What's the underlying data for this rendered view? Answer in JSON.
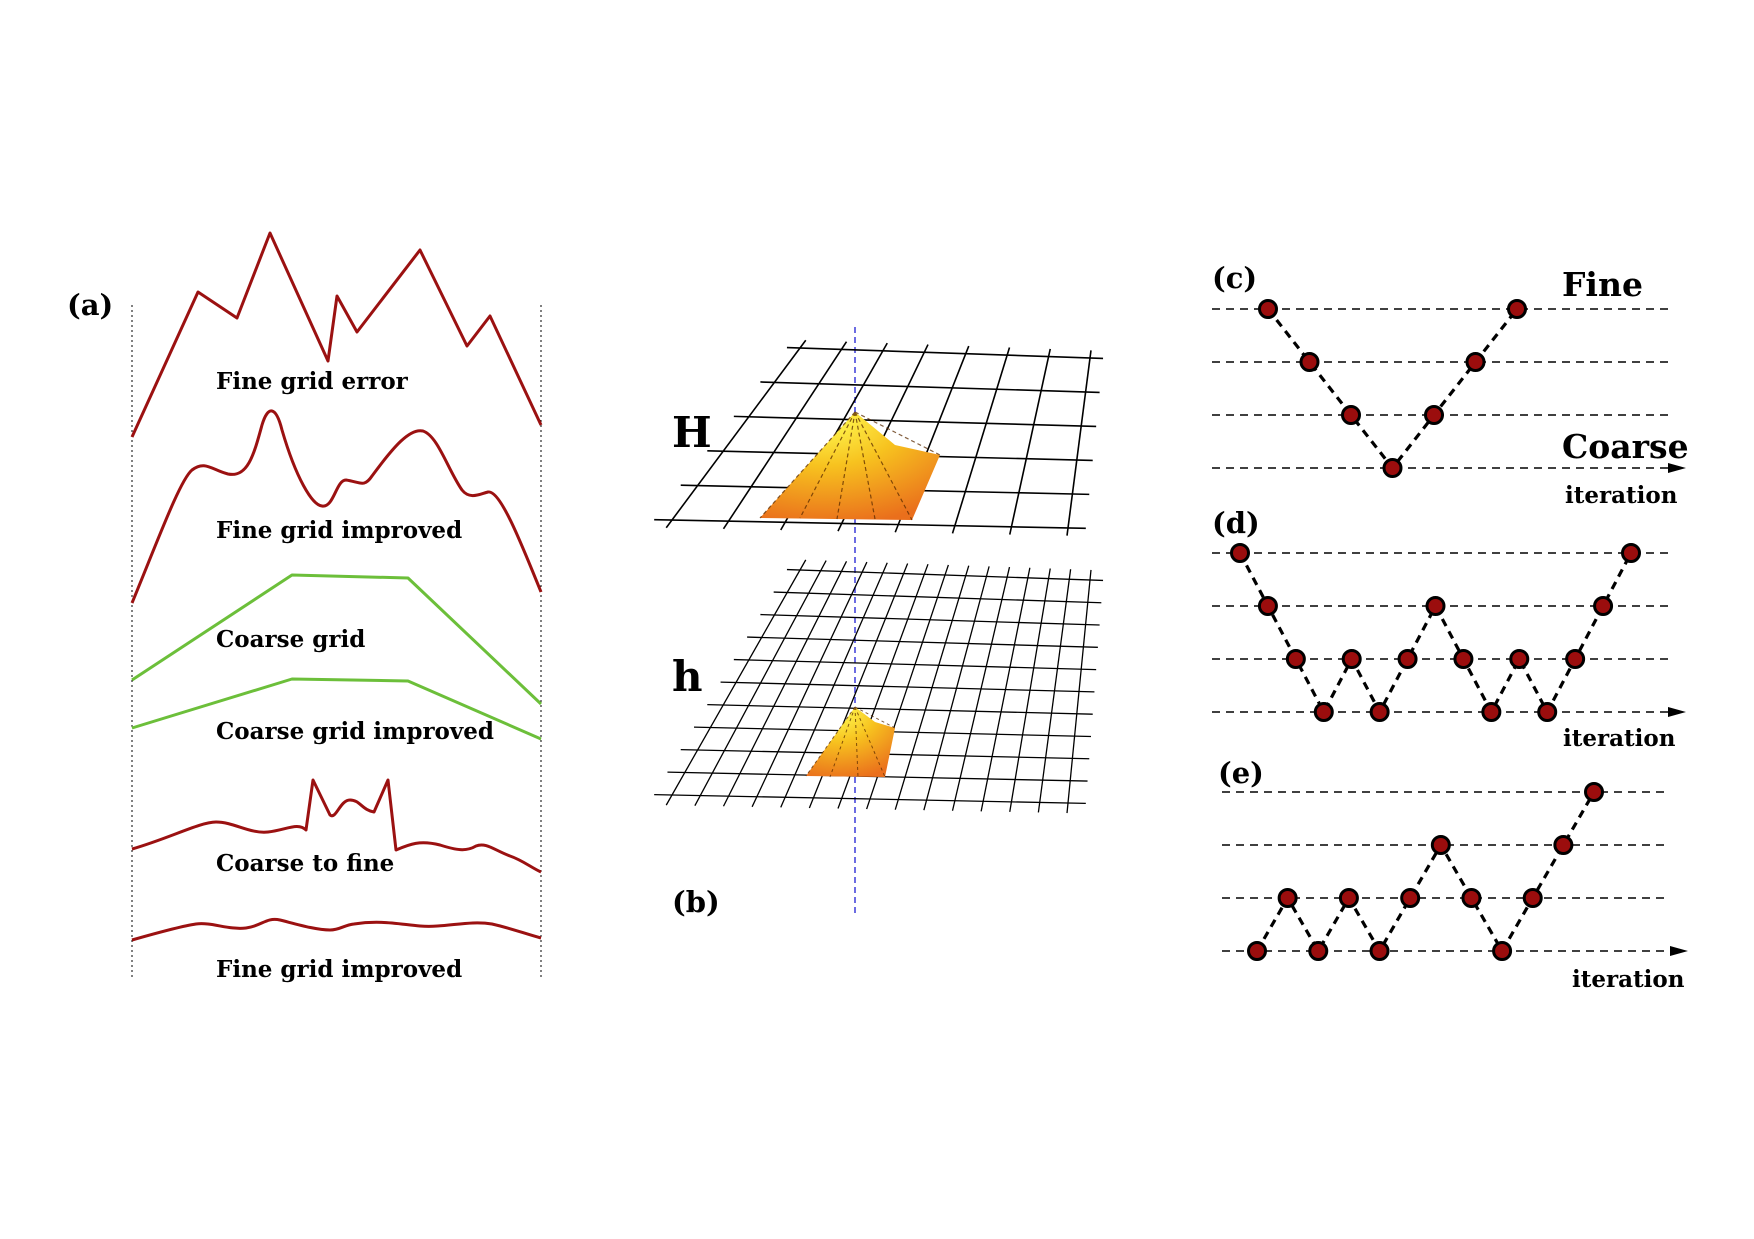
{
  "panel_a": {
    "label": "(a)",
    "curves": [
      {
        "name": "Fine grid error",
        "color": "#9b1111"
      },
      {
        "name": "Fine grid improved",
        "color": "#9b1111"
      },
      {
        "name": "Coarse grid",
        "color": "#6cbf3a"
      },
      {
        "name": "Coarse grid improved",
        "color": "#6cbf3a"
      },
      {
        "name": "Coarse to fine",
        "color": "#9b1111"
      },
      {
        "name": "Fine grid improved",
        "color": "#9b1111"
      }
    ]
  },
  "panel_b": {
    "label": "(b)",
    "coarse_grid_label": "H",
    "fine_grid_label": "h",
    "grid_color": "#000000",
    "axis_color": "#3b3bd9"
  },
  "panel_c": {
    "label": "(c)",
    "fine_label": "Fine",
    "coarse_label": "Coarse",
    "axis_label": "iteration",
    "levels": 4,
    "sequence": [
      3,
      2,
      1,
      0,
      1,
      2,
      3
    ]
  },
  "panel_d": {
    "label": "(d)",
    "axis_label": "iteration",
    "levels": 4,
    "sequence": [
      3,
      2,
      1,
      0,
      1,
      0,
      1,
      2,
      1,
      0,
      1,
      0,
      1,
      2,
      3
    ]
  },
  "panel_e": {
    "label": "(e)",
    "axis_label": "iteration",
    "levels": 4,
    "sequence": [
      0,
      1,
      0,
      1,
      0,
      1,
      2,
      1,
      0,
      1,
      2,
      3
    ]
  },
  "colors": {
    "node_fill": "#9b0d0d",
    "node_stroke": "#000000",
    "dashed_line": "#000000"
  }
}
